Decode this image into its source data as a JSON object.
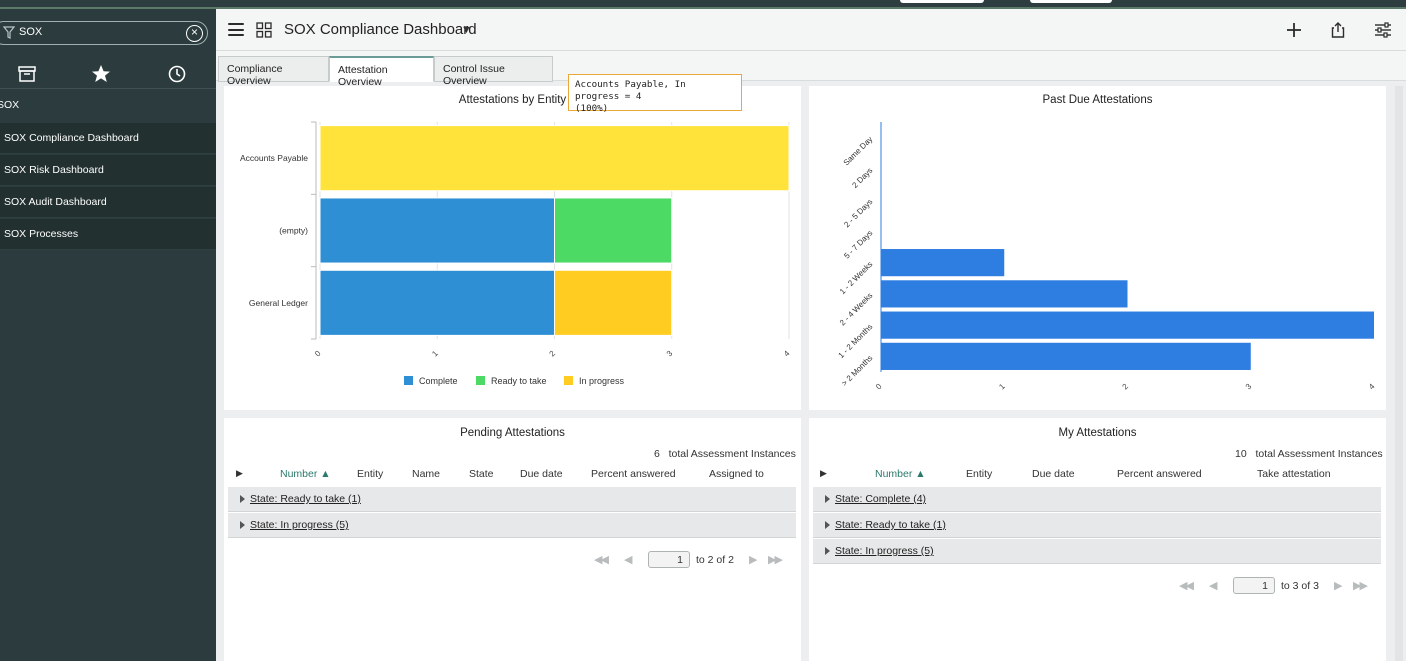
{
  "sidebar": {
    "filter_value": "SOX",
    "section_label": "SOX",
    "items": [
      {
        "label": "SOX Compliance Dashboard"
      },
      {
        "label": "SOX Risk Dashboard"
      },
      {
        "label": "SOX Audit Dashboard"
      },
      {
        "label": "SOX Processes"
      }
    ]
  },
  "header": {
    "title": "SOX Compliance Dashboard"
  },
  "tabs": [
    {
      "label": "Compliance Overview",
      "active": false
    },
    {
      "label": "Attestation Overview",
      "active": true
    },
    {
      "label": "Control Issue Overview",
      "active": false
    }
  ],
  "tooltip": {
    "line1": "Accounts Payable, In progress = 4",
    "line2": "(100%)"
  },
  "charts": {
    "by_entity": {
      "title": "Attestations by Entity",
      "legend": [
        "Complete",
        "Ready to take",
        "In progress"
      ]
    },
    "past_due": {
      "title": "Past Due Attestations"
    }
  },
  "chart_data": [
    {
      "type": "bar",
      "orientation": "horizontal",
      "stacked": true,
      "title": "Attestations by Entity",
      "categories": [
        "Accounts Payable",
        "(empty)",
        "General Ledger"
      ],
      "series": [
        {
          "name": "Complete",
          "values": [
            0,
            2,
            2
          ],
          "color": "#2f8fd4"
        },
        {
          "name": "Ready to take",
          "values": [
            0,
            1,
            0
          ],
          "color": "#4cd964"
        },
        {
          "name": "In progress",
          "values": [
            4,
            0,
            1
          ],
          "color": "#ffe23a",
          "color_alt": "#ffcc22"
        }
      ],
      "xlim": [
        0,
        4
      ],
      "xticks": [
        "0",
        "1",
        "2",
        "3",
        "4"
      ],
      "grid": true,
      "legend_position": "bottom"
    },
    {
      "type": "bar",
      "orientation": "horizontal",
      "title": "Past Due Attestations",
      "categories": [
        "Same Day",
        "2 Days",
        "2 - 5 Days",
        "5 - 7 Days",
        "1 - 2 Weeks",
        "2 - 4 Weeks",
        "1 - 2 Months",
        "> 2 Months"
      ],
      "values": [
        0,
        0,
        0,
        0,
        1,
        2,
        4,
        3
      ],
      "color": "#2e7de1",
      "xlim": [
        0,
        4
      ],
      "xticks": [
        "0",
        "1",
        "2",
        "3",
        "4"
      ]
    }
  ],
  "pending": {
    "title": "Pending Attestations",
    "count_num": "6",
    "count_label": "total Assessment Instances",
    "columns": [
      "Number ▲",
      "Entity",
      "Name",
      "State",
      "Due date",
      "Percent answered",
      "Assigned to"
    ],
    "groups": [
      "State: Ready to take (1)",
      "State: In progress (5)"
    ],
    "page": "1",
    "page_of": "to 2 of 2"
  },
  "mine": {
    "title": "My Attestations",
    "count_num": "10",
    "count_label": "total Assessment Instances",
    "columns": [
      "Number ▲",
      "Entity",
      "Due date",
      "Percent answered",
      "Take attestation"
    ],
    "groups": [
      "State: Complete (4)",
      "State: Ready to take (1)",
      "State: In progress (5)"
    ],
    "page": "1",
    "page_of": "to 3 of 3"
  }
}
